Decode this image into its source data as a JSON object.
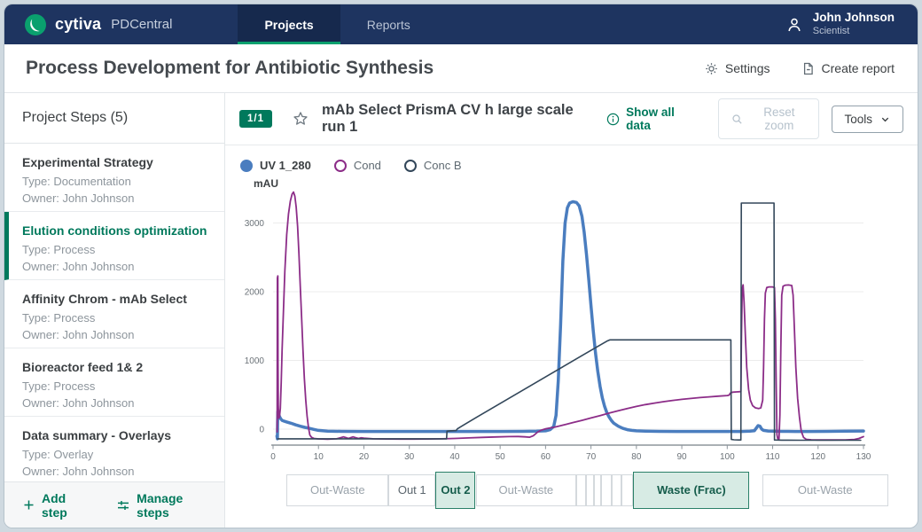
{
  "theme": {
    "accent": "#00795c",
    "navbar_bg": "#1e3460",
    "tab_underline": "#0aa06e",
    "selected_fraction_bg": "#d7ebe4"
  },
  "navbar": {
    "brand": "cytiva",
    "product": "PDCentral",
    "tabs": [
      {
        "label": "Projects"
      },
      {
        "label": "Reports"
      }
    ],
    "user": {
      "name": "John Johnson",
      "role": "Scientist"
    }
  },
  "header": {
    "title": "Process Development for Antibiotic Synthesis",
    "settings_label": "Settings",
    "create_report_label": "Create report"
  },
  "sidebar": {
    "title": "Project Steps (5)",
    "items": [
      {
        "title": "Experimental Strategy",
        "type": "Type: Documentation",
        "owner": "Owner: John Johnson"
      },
      {
        "title": "Elution conditions optimization",
        "type": "Type: Process",
        "owner": "Owner: John Johnson"
      },
      {
        "title": "Affinity Chrom - mAb Select",
        "type": "Type: Process",
        "owner": "Owner: John Johnson"
      },
      {
        "title": "Bioreactor feed 1& 2",
        "type": "Type: Process",
        "owner": "Owner: John Johnson"
      },
      {
        "title": "Data summary - Overlays",
        "type": "Type: Overlay",
        "owner": "Owner: John Johnson"
      }
    ],
    "add_step_label": "Add step",
    "manage_steps_label": "Manage steps"
  },
  "chart_header": {
    "pager": "1/1",
    "title": "mAb Select PrismA CV h large scale run 1",
    "show_all_label": "Show all data",
    "reset_zoom_label": "Reset zoom",
    "tools_label": "Tools"
  },
  "chart_data": {
    "type": "line",
    "title": "mAb Select PrismA CV h large scale run 1",
    "ylabel": "mAU",
    "xlim": [
      0,
      130
    ],
    "ylim": [
      -250,
      3650
    ],
    "yticks": [
      0,
      1000,
      2000,
      3000
    ],
    "xticks": [
      0,
      10,
      20,
      30,
      40,
      50,
      60,
      70,
      80,
      90,
      100,
      110,
      120,
      130
    ],
    "grid": true,
    "legend_position": "top",
    "series": [
      {
        "name": "UV 1_280",
        "color": "#4a7dbf",
        "width": 3.5,
        "points": [
          [
            0.85,
            -100
          ],
          [
            0.95,
            -140
          ],
          [
            1.0,
            80
          ],
          [
            1.05,
            255
          ],
          [
            1.2,
            235
          ],
          [
            1.4,
            185
          ],
          [
            1.7,
            150
          ],
          [
            2,
            128
          ],
          [
            2.5,
            115
          ],
          [
            3,
            105
          ],
          [
            4,
            85
          ],
          [
            5,
            62
          ],
          [
            6,
            42
          ],
          [
            7,
            26
          ],
          [
            8,
            12
          ],
          [
            9,
            -4
          ],
          [
            10,
            -18
          ],
          [
            12,
            -28
          ],
          [
            15,
            -32
          ],
          [
            20,
            -33
          ],
          [
            25,
            -33
          ],
          [
            30,
            -33
          ],
          [
            35,
            -33
          ],
          [
            40,
            -33
          ],
          [
            45,
            -33
          ],
          [
            50,
            -33
          ],
          [
            55,
            -32
          ],
          [
            58,
            -30
          ],
          [
            60,
            -24
          ],
          [
            61,
            -8
          ],
          [
            61.8,
            40
          ],
          [
            62.3,
            200
          ],
          [
            62.8,
            700
          ],
          [
            63.3,
            1500
          ],
          [
            63.8,
            2450
          ],
          [
            64.3,
            3000
          ],
          [
            64.8,
            3220
          ],
          [
            65.3,
            3290
          ],
          [
            66,
            3310
          ],
          [
            66.8,
            3300
          ],
          [
            67.4,
            3250
          ],
          [
            68,
            3100
          ],
          [
            68.5,
            2870
          ],
          [
            69,
            2550
          ],
          [
            69.5,
            2180
          ],
          [
            70,
            1800
          ],
          [
            70.5,
            1430
          ],
          [
            71,
            1110
          ],
          [
            71.5,
            840
          ],
          [
            72,
            620
          ],
          [
            72.5,
            455
          ],
          [
            73,
            330
          ],
          [
            73.5,
            240
          ],
          [
            74,
            175
          ],
          [
            74.5,
            125
          ],
          [
            75,
            88
          ],
          [
            76,
            42
          ],
          [
            77,
            12
          ],
          [
            78,
            -8
          ],
          [
            79,
            -18
          ],
          [
            80,
            -24
          ],
          [
            82,
            -29
          ],
          [
            85,
            -32
          ],
          [
            90,
            -33
          ],
          [
            95,
            -33
          ],
          [
            100,
            -33
          ],
          [
            103,
            -33
          ],
          [
            105,
            -30
          ],
          [
            106,
            -22
          ],
          [
            106.4,
            15
          ],
          [
            106.8,
            52
          ],
          [
            107.2,
            42
          ],
          [
            107.6,
            0
          ],
          [
            108,
            -18
          ],
          [
            109,
            -27
          ],
          [
            110,
            -30
          ],
          [
            112,
            -32
          ],
          [
            115,
            -33
          ],
          [
            118,
            -33
          ],
          [
            122,
            -32
          ],
          [
            126,
            -30
          ],
          [
            130,
            -27
          ]
        ]
      },
      {
        "name": "Cond",
        "color": "#8c2d88",
        "width": 1.8,
        "points": [
          [
            0.9,
            -40
          ],
          [
            0.95,
            2200
          ],
          [
            1.05,
            2230
          ],
          [
            1.1,
            1000
          ],
          [
            1.15,
            350
          ],
          [
            1.25,
            160
          ],
          [
            1.4,
            175
          ],
          [
            1.6,
            300
          ],
          [
            1.8,
            680
          ],
          [
            2,
            1150
          ],
          [
            2.3,
            1750
          ],
          [
            2.6,
            2300
          ],
          [
            3,
            2830
          ],
          [
            3.4,
            3130
          ],
          [
            3.8,
            3320
          ],
          [
            4.2,
            3420
          ],
          [
            4.5,
            3450
          ],
          [
            4.8,
            3390
          ],
          [
            5.1,
            3230
          ],
          [
            5.4,
            2950
          ],
          [
            5.7,
            2550
          ],
          [
            6,
            2080
          ],
          [
            6.3,
            1600
          ],
          [
            6.6,
            1140
          ],
          [
            6.9,
            740
          ],
          [
            7.2,
            420
          ],
          [
            7.5,
            190
          ],
          [
            7.8,
            20
          ],
          [
            8.1,
            -85
          ],
          [
            8.5,
            -120
          ],
          [
            9,
            -135
          ],
          [
            10,
            -142
          ],
          [
            12,
            -146
          ],
          [
            14,
            -140
          ],
          [
            15,
            -122
          ],
          [
            15.5,
            -112
          ],
          [
            16,
            -122
          ],
          [
            16.6,
            -136
          ],
          [
            17.1,
            -124
          ],
          [
            17.6,
            -112
          ],
          [
            18.1,
            -122
          ],
          [
            18.8,
            -136
          ],
          [
            19.4,
            -126
          ],
          [
            20,
            -132
          ],
          [
            22,
            -140
          ],
          [
            25,
            -143
          ],
          [
            28,
            -144
          ],
          [
            31,
            -144
          ],
          [
            34,
            -143
          ],
          [
            37,
            -140
          ],
          [
            40,
            -135
          ],
          [
            43,
            -128
          ],
          [
            46,
            -120
          ],
          [
            49,
            -113
          ],
          [
            52,
            -108
          ],
          [
            54,
            -107
          ],
          [
            55.5,
            -112
          ],
          [
            56.5,
            -118
          ],
          [
            57.3,
            -95
          ],
          [
            58.2,
            -45
          ],
          [
            59,
            -15
          ],
          [
            60,
            5
          ],
          [
            61,
            18
          ],
          [
            62,
            30
          ],
          [
            63,
            45
          ],
          [
            64.5,
            70
          ],
          [
            66,
            95
          ],
          [
            68,
            128
          ],
          [
            70,
            162
          ],
          [
            72,
            198
          ],
          [
            74,
            233
          ],
          [
            76,
            267
          ],
          [
            78,
            300
          ],
          [
            80,
            330
          ],
          [
            82,
            357
          ],
          [
            84,
            380
          ],
          [
            86,
            400
          ],
          [
            88,
            418
          ],
          [
            90,
            433
          ],
          [
            92,
            447
          ],
          [
            94,
            459
          ],
          [
            96,
            470
          ],
          [
            98,
            480
          ],
          [
            100,
            489
          ],
          [
            100.4,
            495
          ],
          [
            100.7,
            525
          ],
          [
            101.2,
            538
          ],
          [
            102,
            542
          ],
          [
            103,
            546
          ],
          [
            103.1,
            1200
          ],
          [
            103.3,
            2050
          ],
          [
            103.5,
            2100
          ],
          [
            103.7,
            1850
          ],
          [
            104,
            1350
          ],
          [
            104.3,
            900
          ],
          [
            104.7,
            580
          ],
          [
            105.1,
            420
          ],
          [
            105.6,
            340
          ],
          [
            106.2,
            310
          ],
          [
            106.9,
            300
          ],
          [
            107.4,
            310
          ],
          [
            107.8,
            420
          ],
          [
            108,
            900
          ],
          [
            108.2,
            1600
          ],
          [
            108.4,
            1980
          ],
          [
            108.7,
            2060
          ],
          [
            109.2,
            2070
          ],
          [
            110,
            2070
          ],
          [
            110.4,
            2060
          ],
          [
            110.6,
            1600
          ],
          [
            110.8,
            600
          ],
          [
            110.95,
            -80
          ],
          [
            111.1,
            -135
          ],
          [
            111.4,
            -140
          ],
          [
            111.6,
            200
          ],
          [
            111.8,
            1200
          ],
          [
            112,
            1950
          ],
          [
            112.3,
            2080
          ],
          [
            112.8,
            2095
          ],
          [
            113.5,
            2098
          ],
          [
            114.2,
            2090
          ],
          [
            114.5,
            1950
          ],
          [
            114.8,
            1450
          ],
          [
            115.1,
            900
          ],
          [
            115.5,
            450
          ],
          [
            115.9,
            170
          ],
          [
            116.3,
            -30
          ],
          [
            116.8,
            -120
          ],
          [
            117.4,
            -148
          ],
          [
            118.5,
            -155
          ],
          [
            120,
            -157
          ],
          [
            123,
            -157
          ],
          [
            126,
            -156
          ],
          [
            128,
            -150
          ],
          [
            129,
            -135
          ],
          [
            130,
            -108
          ]
        ]
      },
      {
        "name": "Conc B",
        "color": "#33475a",
        "width": 1.6,
        "points": [
          [
            1,
            -140
          ],
          [
            5,
            -141
          ],
          [
            10,
            -141
          ],
          [
            15,
            -141
          ],
          [
            20,
            -141
          ],
          [
            25,
            -141
          ],
          [
            30,
            -141
          ],
          [
            35,
            -141
          ],
          [
            38.2,
            -141
          ],
          [
            38.3,
            -30
          ],
          [
            39,
            -25
          ],
          [
            40.3,
            -20
          ],
          [
            40.6,
            5
          ],
          [
            42,
            62
          ],
          [
            45,
            180
          ],
          [
            48,
            295
          ],
          [
            52,
            450
          ],
          [
            56,
            605
          ],
          [
            60,
            760
          ],
          [
            64,
            915
          ],
          [
            68,
            1070
          ],
          [
            71,
            1185
          ],
          [
            73.5,
            1280
          ],
          [
            74.2,
            1300
          ],
          [
            78,
            1300
          ],
          [
            84,
            1300
          ],
          [
            90,
            1300
          ],
          [
            96,
            1300
          ],
          [
            100.8,
            1300
          ],
          [
            100.9,
            -150
          ],
          [
            101.5,
            -155
          ],
          [
            102.5,
            -157
          ],
          [
            103,
            -157
          ],
          [
            103.1,
            3290
          ],
          [
            105,
            3290
          ],
          [
            107,
            3290
          ],
          [
            109,
            3290
          ],
          [
            110.3,
            3290
          ],
          [
            110.4,
            -157
          ],
          [
            112,
            -160
          ],
          [
            116,
            -161
          ],
          [
            120,
            -161
          ],
          [
            124,
            -161
          ],
          [
            127,
            -161
          ],
          [
            129.4,
            -161
          ]
        ]
      }
    ],
    "fractions": [
      {
        "label": "Out-Waste",
        "start": 3,
        "end": 25.4,
        "state": "muted"
      },
      {
        "label": "Out 1",
        "start": 25.4,
        "end": 35.8,
        "state": "default"
      },
      {
        "label": "Out 2",
        "start": 35.8,
        "end": 44.6,
        "state": "selected"
      },
      {
        "label": "Out-Waste",
        "start": 44.6,
        "end": 66.8,
        "state": "muted"
      },
      {
        "label": "",
        "start": 66.8,
        "end": 68.9,
        "state": "empty"
      },
      {
        "label": "",
        "start": 68.9,
        "end": 70.7,
        "state": "empty"
      },
      {
        "label": "",
        "start": 70.7,
        "end": 72.3,
        "state": "empty"
      },
      {
        "label": "",
        "start": 72.3,
        "end": 74.5,
        "state": "empty"
      },
      {
        "label": "",
        "start": 74.5,
        "end": 76.7,
        "state": "empty"
      },
      {
        "label": "",
        "start": 76.7,
        "end": 79.3,
        "state": "empty"
      },
      {
        "label": "Waste (Frac)",
        "start": 79.3,
        "end": 104.9,
        "state": "selected"
      },
      {
        "label": "Out-Waste",
        "start": 107.7,
        "end": 135.4,
        "state": "muted"
      }
    ]
  }
}
